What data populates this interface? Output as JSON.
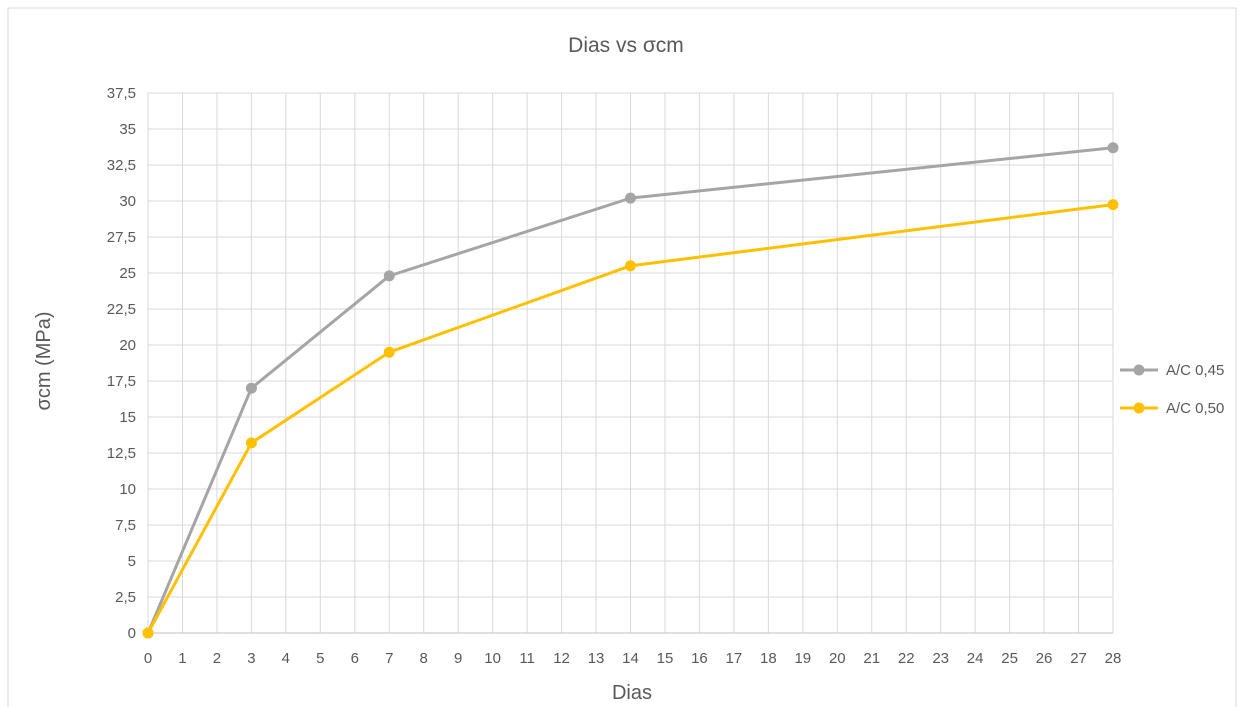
{
  "chart_data": {
    "type": "line",
    "title": "Dias vs σcm",
    "xlabel": "Dias",
    "ylabel": "σcm (MPa)",
    "xlim": [
      0,
      28
    ],
    "ylim": [
      0,
      37.5
    ],
    "x_ticks": [
      "0",
      "1",
      "2",
      "3",
      "4",
      "5",
      "6",
      "7",
      "8",
      "9",
      "10",
      "11",
      "12",
      "13",
      "14",
      "15",
      "16",
      "17",
      "18",
      "19",
      "20",
      "21",
      "22",
      "23",
      "24",
      "25",
      "26",
      "27",
      "28"
    ],
    "y_ticks": [
      "0",
      "2,5",
      "5",
      "7,5",
      "10",
      "12,5",
      "15",
      "17,5",
      "20",
      "22,5",
      "25",
      "27,5",
      "30",
      "32,5",
      "35",
      "37,5"
    ],
    "grid": true,
    "legend_position": "right",
    "series": [
      {
        "name": "A/C 0,45",
        "color": "#A5A5A5",
        "x": [
          0,
          3,
          7,
          14,
          28
        ],
        "values": [
          0,
          17.0,
          24.8,
          30.2,
          33.7
        ]
      },
      {
        "name": "A/C 0,50",
        "color": "#FFC000",
        "x": [
          0,
          3,
          7,
          14,
          28
        ],
        "values": [
          0,
          13.2,
          19.5,
          25.5,
          29.75
        ]
      }
    ]
  }
}
